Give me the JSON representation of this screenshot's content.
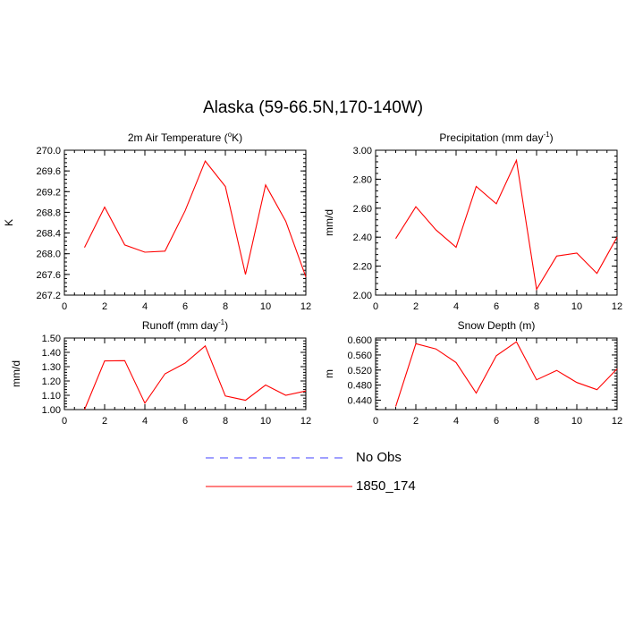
{
  "figure": {
    "title": "Alaska (59-66.5N,170-140W)"
  },
  "legend": {
    "placement": "bottom-center",
    "items": [
      {
        "label": "No Obs",
        "color": "#4040ff",
        "dashed": true
      },
      {
        "label": "1850_174",
        "color": "#ff0000",
        "dashed": false
      }
    ]
  },
  "chart_data": [
    {
      "type": "line",
      "title_main": "2m Air Temperature (",
      "title_sup": "o",
      "title_tail": "K)",
      "xlabel": "",
      "ylabel": "K",
      "xlim": [
        0,
        12
      ],
      "ylim": [
        267.2,
        270.0
      ],
      "xticks": [
        0,
        2,
        4,
        6,
        8,
        10,
        12
      ],
      "yticks": [
        267.2,
        267.6,
        268.0,
        268.4,
        268.8,
        269.2,
        269.6,
        270.0
      ],
      "ytick_labels": [
        "267.2",
        "267.6",
        "268.0",
        "268.4",
        "268.8",
        "269.2",
        "269.6",
        "270.0"
      ],
      "grid": false,
      "series": [
        {
          "name": "1850_174",
          "color": "#ff0000",
          "x": [
            1,
            2,
            3,
            4,
            5,
            6,
            7,
            8,
            9,
            10,
            11,
            12
          ],
          "values": [
            268.12,
            268.9,
            268.17,
            268.03,
            268.05,
            268.83,
            269.79,
            269.3,
            267.6,
            269.33,
            268.63,
            267.55
          ]
        }
      ]
    },
    {
      "type": "line",
      "title_main": "Precipitation (mm day",
      "title_sup": "-1",
      "title_tail": ")",
      "xlabel": "",
      "ylabel": "mm/d",
      "xlim": [
        0,
        12
      ],
      "ylim": [
        2.0,
        3.0
      ],
      "xticks": [
        0,
        2,
        4,
        6,
        8,
        10,
        12
      ],
      "yticks": [
        2.0,
        2.2,
        2.4,
        2.6,
        2.8,
        3.0
      ],
      "ytick_labels": [
        "2.00",
        "2.20",
        "2.40",
        "2.60",
        "2.80",
        "3.00"
      ],
      "grid": false,
      "series": [
        {
          "name": "1850_174",
          "color": "#ff0000",
          "x": [
            1,
            2,
            3,
            4,
            5,
            6,
            7,
            8,
            9,
            10,
            11,
            12
          ],
          "values": [
            2.39,
            2.61,
            2.45,
            2.33,
            2.75,
            2.63,
            2.93,
            2.04,
            2.27,
            2.29,
            2.15,
            2.4
          ]
        }
      ]
    },
    {
      "type": "line",
      "title_main": "Runoff (mm day",
      "title_sup": "-1",
      "title_tail": ")",
      "xlabel": "",
      "ylabel": "mm/d",
      "xlim": [
        0,
        12
      ],
      "ylim": [
        1.0,
        1.5
      ],
      "xticks": [
        0,
        2,
        4,
        6,
        8,
        10,
        12
      ],
      "yticks": [
        1.0,
        1.1,
        1.2,
        1.3,
        1.4,
        1.5
      ],
      "ytick_labels": [
        "1.00",
        "1.10",
        "1.20",
        "1.30",
        "1.40",
        "1.50"
      ],
      "grid": false,
      "series": [
        {
          "name": "1850_174",
          "color": "#ff0000",
          "x": [
            1,
            2,
            3,
            4,
            5,
            6,
            7,
            8,
            9,
            10,
            11,
            12
          ],
          "values": [
            1.0,
            1.34,
            1.342,
            1.045,
            1.25,
            1.325,
            1.445,
            1.095,
            1.065,
            1.172,
            1.1,
            1.13
          ]
        }
      ]
    },
    {
      "type": "line",
      "title_main": "Snow Depth (m)",
      "title_sup": "",
      "title_tail": "",
      "xlabel": "",
      "ylabel": "m",
      "xlim": [
        0,
        12
      ],
      "ylim": [
        0.415,
        0.605
      ],
      "xticks": [
        0,
        2,
        4,
        6,
        8,
        10,
        12
      ],
      "yticks": [
        0.44,
        0.48,
        0.52,
        0.56,
        0.6
      ],
      "ytick_labels": [
        "0.440",
        "0.480",
        "0.520",
        "0.560",
        "0.600"
      ],
      "grid": false,
      "series": [
        {
          "name": "1850_174",
          "color": "#ff0000",
          "x": [
            1,
            2,
            3,
            4,
            5,
            6,
            7,
            8,
            9,
            10,
            11,
            12
          ],
          "values": [
            0.423,
            0.59,
            0.576,
            0.54,
            0.459,
            0.558,
            0.595,
            0.494,
            0.519,
            0.487,
            0.468,
            0.523
          ]
        }
      ]
    }
  ]
}
